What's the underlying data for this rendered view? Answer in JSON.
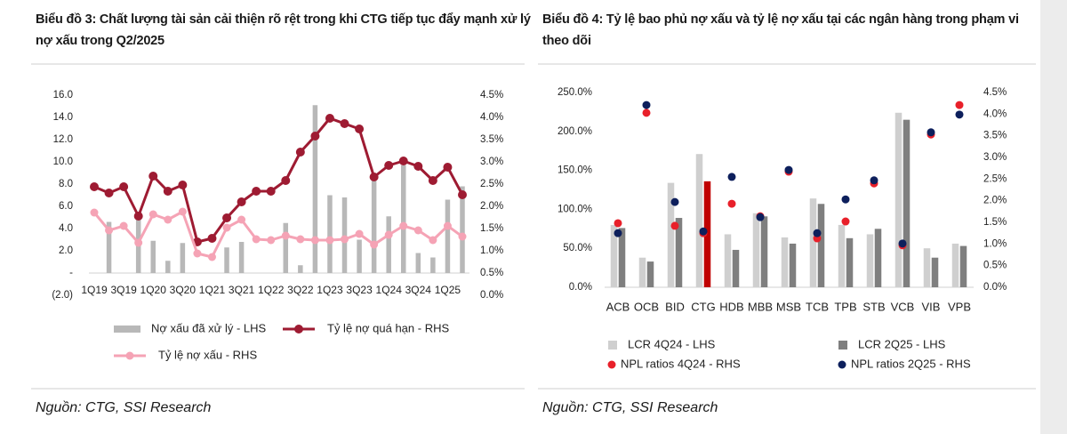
{
  "chart_data": [
    {
      "type": "combo",
      "title": "Biểu đồ 3: Chất lượng tài sản cải thiện rõ rệt trong khi CTG tiếp tục đẩy mạnh xử lý nợ xấu trong Q2/2025",
      "source": "Nguồn: CTG, SSI Research",
      "categories": [
        "1Q19",
        null,
        "3Q19",
        null,
        "1Q20",
        null,
        "3Q20",
        null,
        "1Q21",
        null,
        "3Q21",
        null,
        "1Q22",
        null,
        "3Q22",
        null,
        "1Q23",
        null,
        "3Q23",
        null,
        "1Q24",
        null,
        "3Q24",
        null,
        "1Q25",
        null
      ],
      "ylim": [
        -2,
        16
      ],
      "yticks": [
        {
          "value": -2,
          "label": "(2.0)"
        },
        {
          "value": 0,
          "label": "-"
        },
        {
          "value": 2,
          "label": "2.0"
        },
        {
          "value": 4,
          "label": "4.0"
        },
        {
          "value": 6,
          "label": "6.0"
        },
        {
          "value": 8,
          "label": "8.0"
        },
        {
          "value": 10,
          "label": "10.0"
        },
        {
          "value": 12,
          "label": "12.0"
        },
        {
          "value": 14,
          "label": "14.0"
        },
        {
          "value": 16,
          "label": "16.0"
        }
      ],
      "y2lim": [
        0,
        4.5
      ],
      "y2ticks": [
        {
          "value": 0,
          "label": "0.0%"
        },
        {
          "value": 0.5,
          "label": "0.5%"
        },
        {
          "value": 1,
          "label": "1.0%"
        },
        {
          "value": 1.5,
          "label": "1.5%"
        },
        {
          "value": 2,
          "label": "2.0%"
        },
        {
          "value": 2.5,
          "label": "2.5%"
        },
        {
          "value": 3,
          "label": "3.0%"
        },
        {
          "value": 3.5,
          "label": "3.5%"
        },
        {
          "value": 4,
          "label": "4.0%"
        },
        {
          "value": 4.5,
          "label": "4.5%"
        }
      ],
      "legend": "bottom",
      "series": [
        {
          "name": "Nợ xấu đã xử lý - LHS",
          "type": "bar",
          "color": "#b8b8b8",
          "values": [
            null,
            4.6,
            null,
            4.8,
            2.9,
            1.1,
            2.7,
            null,
            null,
            2.3,
            2.8,
            null,
            null,
            4.5,
            0.7,
            15.1,
            7.0,
            6.8,
            3.0,
            8.6,
            5.1,
            9.7,
            1.8,
            1.4,
            6.6,
            7.8
          ]
        },
        {
          "name": "Tỷ lệ nợ quá hạn - RHS",
          "type": "line",
          "axis": "y2",
          "color": "#9e1b32",
          "values": [
            2.44,
            2.3,
            2.44,
            1.78,
            2.68,
            2.34,
            2.48,
            1.2,
            1.28,
            1.74,
            2.1,
            2.34,
            2.34,
            2.58,
            3.22,
            3.58,
            3.98,
            3.86,
            3.74,
            2.66,
            2.92,
            3.02,
            2.9,
            2.58,
            2.88,
            2.26
          ]
        },
        {
          "name": "Tỷ lệ nợ xấu - RHS",
          "type": "line",
          "axis": "y2",
          "color": "#f5a3b5",
          "values": [
            1.86,
            1.46,
            1.56,
            1.18,
            1.82,
            1.7,
            1.88,
            0.94,
            0.86,
            1.52,
            1.7,
            1.26,
            1.24,
            1.34,
            1.26,
            1.24,
            1.24,
            1.26,
            1.38,
            1.14,
            1.36,
            1.56,
            1.46,
            1.24,
            1.56,
            1.32
          ]
        }
      ]
    },
    {
      "type": "combo",
      "title": "Biểu đồ 4: Tỷ lệ bao phủ nợ xấu và tỷ lệ nợ xấu tại các ngân hàng trong phạm vi theo dõi",
      "source": "Nguồn: CTG, SSI Research",
      "categories": [
        "ACB",
        "OCB",
        "BID",
        "CTG",
        "HDB",
        "MBB",
        "MSB",
        "TCB",
        "TPB",
        "STB",
        "VCB",
        "VIB",
        "VPB"
      ],
      "ylim": [
        0,
        250
      ],
      "yticks": [
        {
          "value": 0,
          "label": "0.0%"
        },
        {
          "value": 50,
          "label": "50.0%"
        },
        {
          "value": 100,
          "label": "100.0%"
        },
        {
          "value": 150,
          "label": "150.0%"
        },
        {
          "value": 200,
          "label": "200.0%"
        },
        {
          "value": 250,
          "label": "250.0%"
        }
      ],
      "y2lim": [
        0,
        4.5
      ],
      "y2ticks": [
        {
          "value": 0,
          "label": "0.0%"
        },
        {
          "value": 0.5,
          "label": "0.5%"
        },
        {
          "value": 1,
          "label": "1.0%"
        },
        {
          "value": 1.5,
          "label": "1.5%"
        },
        {
          "value": 2,
          "label": "2.0%"
        },
        {
          "value": 2.5,
          "label": "2.5%"
        },
        {
          "value": 3,
          "label": "3.0%"
        },
        {
          "value": 3.5,
          "label": "3.5%"
        },
        {
          "value": 4,
          "label": "4.0%"
        },
        {
          "value": 4.5,
          "label": "4.5%"
        }
      ],
      "legend": "bottom",
      "series": [
        {
          "name": "LCR 4Q24 - LHS",
          "type": "bar",
          "color": "#cfcfcf",
          "values": [
            80,
            38,
            134,
            171,
            68,
            95,
            64,
            114,
            80,
            68,
            224,
            50,
            56
          ]
        },
        {
          "name": "LCR 2Q25 - LHS",
          "type": "bar",
          "color": "#7f7f7f",
          "colors": [
            "#7f7f7f",
            "#7f7f7f",
            "#7f7f7f",
            "#c00000",
            "#7f7f7f",
            "#7f7f7f",
            "#7f7f7f",
            "#7f7f7f",
            "#7f7f7f",
            "#7f7f7f",
            "#7f7f7f",
            "#7f7f7f",
            "#7f7f7f"
          ],
          "values": [
            76,
            33,
            89,
            136,
            48,
            91,
            56,
            107,
            63,
            75,
            215,
            38,
            53
          ]
        },
        {
          "name": "NPL ratios 4Q24 - RHS",
          "type": "scatter",
          "axis": "y2",
          "color": "#e8202a",
          "values": [
            1.48,
            4.03,
            1.42,
            1.25,
            1.93,
            1.64,
            2.67,
            1.13,
            1.52,
            2.4,
            0.97,
            3.53,
            4.21
          ]
        },
        {
          "name": "NPL ratios 2Q25 - RHS",
          "type": "scatter",
          "axis": "y2",
          "color": "#0d1f5c",
          "values": [
            1.25,
            4.21,
            1.97,
            1.29,
            2.55,
            1.62,
            2.71,
            1.25,
            2.03,
            2.47,
            1.01,
            3.58,
            3.99
          ]
        }
      ]
    }
  ]
}
